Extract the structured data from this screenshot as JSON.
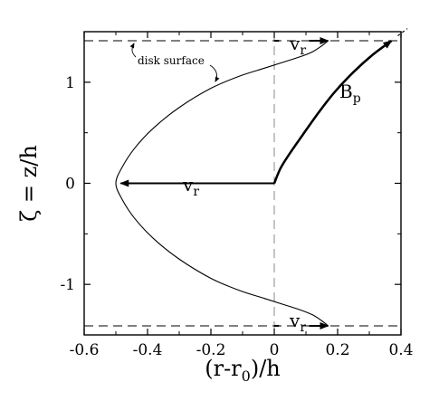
{
  "chart_data": {
    "type": "line",
    "xlabel": "(r-r",
    "xlabel_sub": "0",
    "xlabel_tail": ")/h",
    "ylabel": "ζ = z/h",
    "xlim": [
      -0.6,
      0.4
    ],
    "ylim": [
      -1.5,
      1.5
    ],
    "x_ticks": [
      -0.6,
      -0.4,
      -0.2,
      0,
      0.2,
      0.4
    ],
    "x_tick_labels": [
      "-0.6",
      "-0.4",
      "-0.2",
      "0",
      "0.2",
      "0.4"
    ],
    "y_ticks": [
      -1,
      0,
      1
    ],
    "y_tick_labels": [
      "-1",
      "0",
      "1"
    ],
    "disk_surface_z": [
      1.41,
      -1.41
    ],
    "series": [
      {
        "name": "v",
        "name_sub": "r",
        "style": "thin",
        "x": [
          0.17,
          0.15,
          0.12,
          0.08,
          0.03,
          -0.03,
          -0.11,
          -0.2,
          -0.3,
          -0.38,
          -0.44,
          -0.48,
          -0.5,
          -0.48,
          -0.44,
          -0.38,
          -0.3,
          -0.2,
          -0.11,
          -0.03,
          0.03,
          0.08,
          0.12,
          0.15,
          0.17
        ],
        "y": [
          1.41,
          1.36,
          1.3,
          1.25,
          1.2,
          1.14,
          1.06,
          0.94,
          0.75,
          0.55,
          0.35,
          0.16,
          0,
          -0.16,
          -0.35,
          -0.55,
          -0.75,
          -0.94,
          -1.06,
          -1.14,
          -1.2,
          -1.25,
          -1.3,
          -1.36,
          -1.41
        ]
      },
      {
        "name": "B",
        "name_sub": "p",
        "style": "thick",
        "x": [
          0.0,
          0.02,
          0.05,
          0.09,
          0.14,
          0.19,
          0.25,
          0.31,
          0.37,
          0.31,
          0.25,
          0.19,
          0.14,
          0.09,
          0.05,
          0.02,
          0.0
        ],
        "y": [
          0,
          0.15,
          0.3,
          0.48,
          0.7,
          0.9,
          1.1,
          1.27,
          1.41,
          1.27,
          1.1,
          0.9,
          0.7,
          0.48,
          0.3,
          0.15,
          0
        ]
      }
    ],
    "annotations": {
      "disk_surface": "disk surface",
      "vr_main": "v",
      "vr_main_sub": "r",
      "vr_top": "v",
      "vr_top_sub": "r",
      "vr_bottom": "v",
      "vr_bottom_sub": "r",
      "bp": "B",
      "bp_sub": "p"
    }
  }
}
